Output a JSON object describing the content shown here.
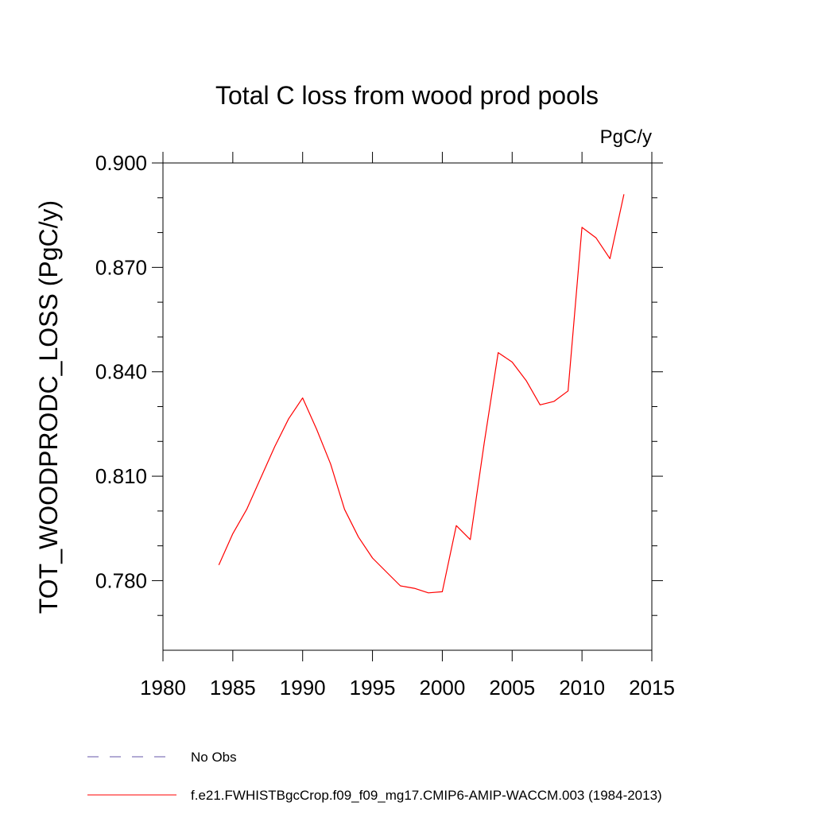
{
  "chart_data": {
    "type": "line",
    "title": "Total C loss from wood prod pools",
    "units_label": "PgC/y",
    "xlabel": "",
    "ylabel": "TOT_WOODPRODC_LOSS  (PgC/y)",
    "xlim": [
      1980,
      2015
    ],
    "ylim": [
      0.76,
      0.903
    ],
    "x_ticks": [
      1980,
      1985,
      1990,
      1995,
      2000,
      2005,
      2010,
      2015
    ],
    "x_tick_labels": [
      "1980",
      "1985",
      "1990",
      "1995",
      "2000",
      "2005",
      "2010",
      "2015"
    ],
    "y_ticks": [
      0.78,
      0.81,
      0.84,
      0.87,
      0.9
    ],
    "y_tick_labels": [
      "0.780",
      "0.810",
      "0.840",
      "0.870",
      "0.900"
    ],
    "y_minor_step": 0.01,
    "x_minor_step": 5,
    "grid": false,
    "legend_position": "bottom-left",
    "series": [
      {
        "name": "f.e21.FWHISTBgcCrop.f09_f09_mg17.CMIP6-AMIP-WACCM.003 (1984-2013)",
        "color": "#ff0000",
        "dash": "solid",
        "x": [
          1984,
          1985,
          1986,
          1987,
          1988,
          1989,
          1990,
          1991,
          1992,
          1993,
          1994,
          1995,
          1996,
          1997,
          1998,
          1999,
          2000,
          2001,
          2002,
          2003,
          2004,
          2005,
          2006,
          2007,
          2008,
          2009,
          2010,
          2011,
          2012,
          2013
        ],
        "y": [
          0.7845,
          0.7935,
          0.8005,
          0.8095,
          0.8185,
          0.8265,
          0.8325,
          0.8235,
          0.8135,
          0.8005,
          0.7925,
          0.7865,
          0.7825,
          0.7785,
          0.7778,
          0.7765,
          0.7768,
          0.7958,
          0.7918,
          0.8195,
          0.8455,
          0.8428,
          0.8375,
          0.8305,
          0.8315,
          0.8345,
          0.8815,
          0.8785,
          0.8725,
          0.891
        ]
      }
    ],
    "legend": [
      {
        "label": "No Obs",
        "color": "#6655aa",
        "dash": "dashed"
      },
      {
        "label": "f.e21.FWHISTBgcCrop.f09_f09_mg17.CMIP6-AMIP-WACCM.003 (1984-2013)",
        "color": "#ff0000",
        "dash": "solid"
      }
    ]
  }
}
